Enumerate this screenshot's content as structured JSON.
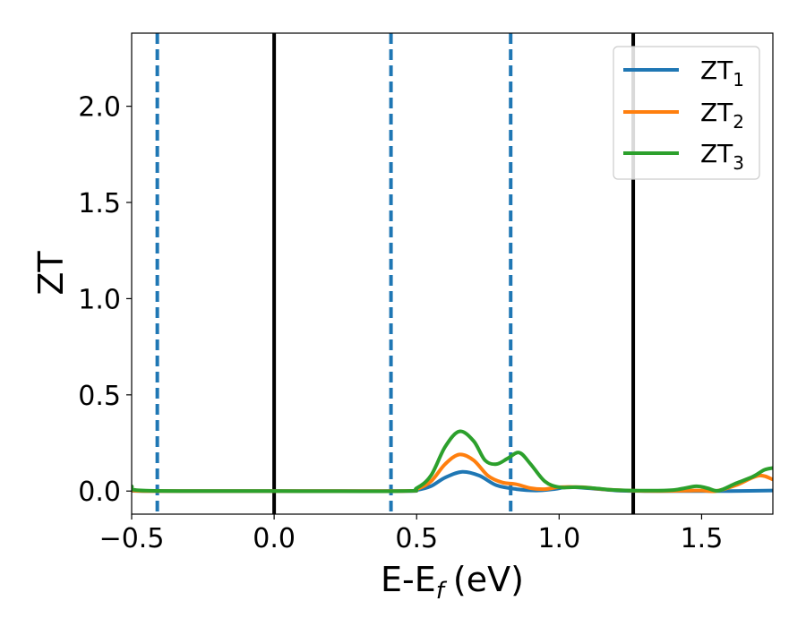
{
  "chart_data": {
    "type": "line",
    "xlabel_main": "E-E",
    "xlabel_sub": "f",
    "xlabel_unit": "(eV)",
    "ylabel": "ZT",
    "xlim": [
      -0.5,
      1.75
    ],
    "ylim": [
      -0.12,
      2.38
    ],
    "xticks": [
      -0.5,
      0.0,
      0.5,
      1.0,
      1.5
    ],
    "xtick_labels": [
      "−0.5",
      "0.0",
      "0.5",
      "1.0",
      "1.5"
    ],
    "yticks": [
      0.0,
      0.5,
      1.0,
      1.5,
      2.0
    ],
    "ytick_labels": [
      "0.0",
      "0.5",
      "1.0",
      "1.5",
      "2.0"
    ],
    "grid": false,
    "legend_position": "top-right",
    "solid_vlines": [
      0.0,
      1.26
    ],
    "dashed_vlines": [
      -0.41,
      0.41,
      0.83
    ],
    "solid_vline_color": "#000000",
    "dashed_vline_color": "#1f77b4",
    "series": [
      {
        "name_main": "ZT",
        "name_sub": "1",
        "color": "#1f77b4",
        "points": [
          [
            -0.5,
            0.005
          ],
          [
            -0.45,
            0.0
          ],
          [
            0.0,
            0.0
          ],
          [
            0.45,
            0.0
          ],
          [
            0.5,
            0.005
          ],
          [
            0.55,
            0.025
          ],
          [
            0.6,
            0.07
          ],
          [
            0.66,
            0.1
          ],
          [
            0.72,
            0.08
          ],
          [
            0.78,
            0.03
          ],
          [
            0.85,
            0.01
          ],
          [
            0.92,
            0.003
          ],
          [
            0.98,
            0.01
          ],
          [
            1.03,
            0.02
          ],
          [
            1.1,
            0.015
          ],
          [
            1.2,
            0.003
          ],
          [
            1.3,
            0.0
          ],
          [
            1.4,
            0.0
          ],
          [
            1.5,
            0.0
          ],
          [
            1.6,
            0.0
          ],
          [
            1.75,
            0.003
          ]
        ]
      },
      {
        "name_main": "ZT",
        "name_sub": "2",
        "color": "#ff7f0e",
        "points": [
          [
            -0.5,
            0.01
          ],
          [
            -0.45,
            0.0
          ],
          [
            0.0,
            0.0
          ],
          [
            0.45,
            0.0
          ],
          [
            0.5,
            0.01
          ],
          [
            0.55,
            0.05
          ],
          [
            0.6,
            0.14
          ],
          [
            0.65,
            0.19
          ],
          [
            0.7,
            0.16
          ],
          [
            0.75,
            0.08
          ],
          [
            0.8,
            0.045
          ],
          [
            0.85,
            0.035
          ],
          [
            0.9,
            0.015
          ],
          [
            0.95,
            0.01
          ],
          [
            1.0,
            0.02
          ],
          [
            1.08,
            0.02
          ],
          [
            1.15,
            0.01
          ],
          [
            1.25,
            0.002
          ],
          [
            1.35,
            0.0
          ],
          [
            1.45,
            0.002
          ],
          [
            1.5,
            0.003
          ],
          [
            1.55,
            0.0
          ],
          [
            1.62,
            0.03
          ],
          [
            1.7,
            0.08
          ],
          [
            1.75,
            0.06
          ]
        ]
      },
      {
        "name_main": "ZT",
        "name_sub": "3",
        "color": "#2ca02c",
        "points": [
          [
            -0.5,
            0.025
          ],
          [
            -0.45,
            0.002
          ],
          [
            0.0,
            0.0
          ],
          [
            0.45,
            0.0
          ],
          [
            0.5,
            0.015
          ],
          [
            0.55,
            0.08
          ],
          [
            0.6,
            0.23
          ],
          [
            0.65,
            0.31
          ],
          [
            0.7,
            0.26
          ],
          [
            0.74,
            0.16
          ],
          [
            0.78,
            0.14
          ],
          [
            0.82,
            0.17
          ],
          [
            0.86,
            0.2
          ],
          [
            0.9,
            0.14
          ],
          [
            0.95,
            0.05
          ],
          [
            1.0,
            0.02
          ],
          [
            1.06,
            0.02
          ],
          [
            1.12,
            0.015
          ],
          [
            1.2,
            0.005
          ],
          [
            1.3,
            0.002
          ],
          [
            1.4,
            0.005
          ],
          [
            1.48,
            0.025
          ],
          [
            1.52,
            0.015
          ],
          [
            1.56,
            0.002
          ],
          [
            1.62,
            0.04
          ],
          [
            1.68,
            0.075
          ],
          [
            1.72,
            0.11
          ],
          [
            1.75,
            0.12
          ]
        ]
      }
    ]
  }
}
